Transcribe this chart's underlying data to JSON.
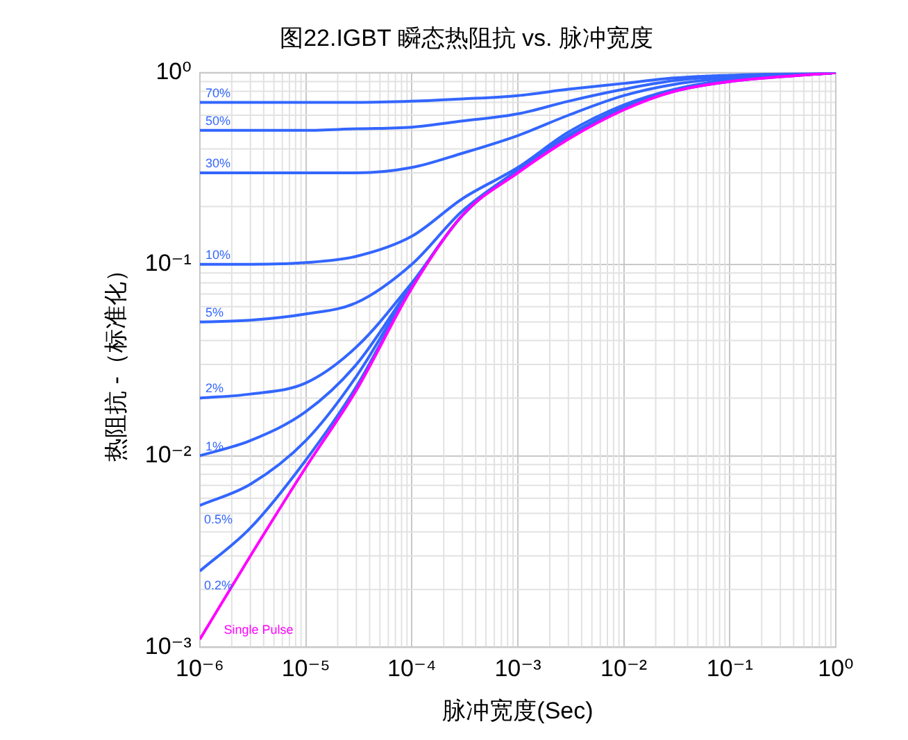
{
  "chart_data": {
    "type": "line",
    "title": "图22.IGBT 瞬态热阻抗 vs. 脉冲宽度",
    "xlabel": "脉冲宽度(Sec)",
    "ylabel": "热阻抗 -（标准化）",
    "log": "xy",
    "grid": true,
    "legend": false,
    "marker": "none",
    "line_style": "solid",
    "x": [
      1e-06,
      3e-06,
      1e-05,
      3e-05,
      0.0001,
      0.0003,
      0.001,
      0.003,
      0.01,
      0.03,
      0.1,
      1
    ],
    "xlim": [
      1e-06,
      1
    ],
    "xticks": [
      {
        "value": 1e-06,
        "label": "10⁻⁶"
      },
      {
        "value": 1e-05,
        "label": "10⁻⁵"
      },
      {
        "value": 0.0001,
        "label": "10⁻⁴"
      },
      {
        "value": 0.001,
        "label": "10⁻³"
      },
      {
        "value": 0.01,
        "label": "10⁻²"
      },
      {
        "value": 0.1,
        "label": "10⁻¹"
      },
      {
        "value": 1,
        "label": "10⁰"
      }
    ],
    "ylim": [
      0.001,
      1
    ],
    "yticks": [
      {
        "value": 0.001,
        "label": "10⁻³"
      },
      {
        "value": 0.01,
        "label": "10⁻²"
      },
      {
        "value": 0.1,
        "label": "10⁻¹"
      },
      {
        "value": 1,
        "label": "10⁰"
      }
    ],
    "series": [
      {
        "name": "70%",
        "color": "#3366ff",
        "values": [
          0.7,
          0.7,
          0.7,
          0.7,
          0.71,
          0.73,
          0.76,
          0.82,
          0.88,
          0.94,
          0.97,
          1.0
        ]
      },
      {
        "name": "50%",
        "color": "#3366ff",
        "values": [
          0.5,
          0.5,
          0.5,
          0.51,
          0.52,
          0.56,
          0.61,
          0.71,
          0.82,
          0.91,
          0.96,
          1.0
        ]
      },
      {
        "name": "30%",
        "color": "#3366ff",
        "values": [
          0.3,
          0.3,
          0.3,
          0.3,
          0.32,
          0.38,
          0.47,
          0.6,
          0.76,
          0.87,
          0.94,
          1.0
        ]
      },
      {
        "name": "10%",
        "color": "#3366ff",
        "values": [
          0.1,
          0.1,
          0.102,
          0.11,
          0.14,
          0.22,
          0.32,
          0.49,
          0.68,
          0.82,
          0.92,
          1.0
        ]
      },
      {
        "name": "5%",
        "color": "#3366ff",
        "values": [
          0.05,
          0.051,
          0.055,
          0.063,
          0.1,
          0.19,
          0.31,
          0.47,
          0.66,
          0.81,
          0.91,
          1.0
        ]
      },
      {
        "name": "2%",
        "color": "#3366ff",
        "values": [
          0.02,
          0.021,
          0.024,
          0.037,
          0.08,
          0.18,
          0.31,
          0.47,
          0.66,
          0.81,
          0.91,
          1.0
        ]
      },
      {
        "name": "1%",
        "color": "#3366ff",
        "values": [
          0.01,
          0.012,
          0.017,
          0.03,
          0.078,
          0.18,
          0.31,
          0.46,
          0.65,
          0.81,
          0.91,
          1.0
        ]
      },
      {
        "name": "0.5%",
        "color": "#3366ff",
        "values": [
          0.0055,
          0.0071,
          0.012,
          0.026,
          0.077,
          0.18,
          0.31,
          0.46,
          0.65,
          0.81,
          0.91,
          1.0
        ]
      },
      {
        "name": "0.2%",
        "color": "#3366ff",
        "values": [
          0.0025,
          0.0042,
          0.0095,
          0.023,
          0.076,
          0.18,
          0.31,
          0.46,
          0.65,
          0.8,
          0.9,
          1.0
        ]
      },
      {
        "name": "Single Pulse",
        "color": "#ff00ff",
        "values": [
          0.0011,
          0.003,
          0.0087,
          0.022,
          0.075,
          0.18,
          0.3,
          0.45,
          0.64,
          0.8,
          0.9,
          1.0
        ]
      }
    ]
  }
}
